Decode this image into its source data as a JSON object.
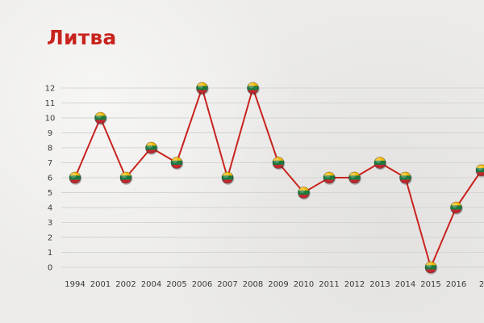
{
  "chart_data": {
    "type": "line",
    "title": "Литва",
    "x": [
      "1994",
      "2001",
      "2002",
      "2004",
      "2005",
      "2006",
      "2007",
      "2008",
      "2009",
      "2010",
      "2011",
      "2012",
      "2013",
      "2014",
      "2015",
      "2016",
      "2"
    ],
    "series": [
      {
        "values": [
          6,
          10,
          6,
          8,
          7,
          12,
          6,
          12,
          7,
          5,
          6,
          6,
          7,
          6,
          0,
          4,
          6.5
        ]
      }
    ],
    "ylim": [
      0,
      12
    ],
    "yticks": [
      0,
      1,
      2,
      3,
      4,
      5,
      6,
      7,
      8,
      9,
      10,
      11,
      12
    ],
    "grid": true,
    "line_color": "#c8231e",
    "marker": "lithuania-flag",
    "flag_colors": [
      "#f5b800",
      "#1b7a3e",
      "#c1272d"
    ]
  }
}
